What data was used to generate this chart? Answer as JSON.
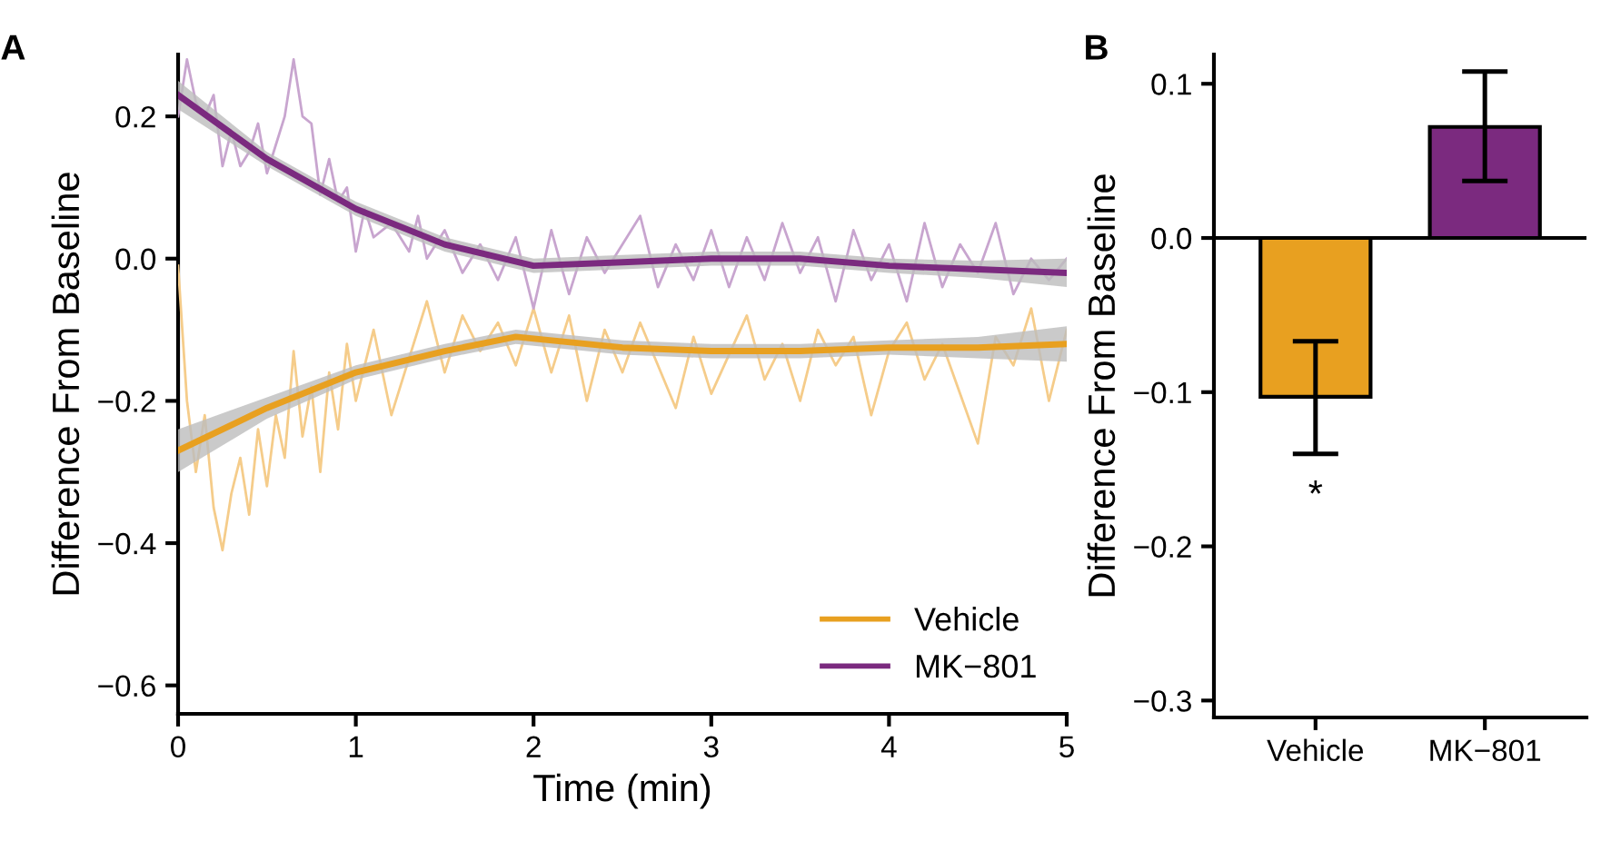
{
  "chart_data": [
    {
      "type": "line",
      "title": "A",
      "xlabel": "Time (min)",
      "ylabel": "Difference From Baseline",
      "xlim": [
        0,
        5
      ],
      "ylim": [
        -0.64,
        0.287
      ],
      "xticks": [
        0,
        1,
        2,
        3,
        4,
        5
      ],
      "yticks": [
        0.2,
        {
          "value": 0,
          "label": "0.0"
        },
        -0.2,
        -0.4,
        -0.6
      ],
      "grid": false,
      "legend": "bottom right",
      "line_style": "solid",
      "marker": "none",
      "series": [
        {
          "color": "#f5cc8a",
          "x": [
            0,
            0.05,
            0.1,
            0.15,
            0.2,
            0.25,
            0.3,
            0.35,
            0.4,
            0.45,
            0.5,
            0.55,
            0.6,
            0.65,
            0.7,
            0.75,
            0.8,
            0.85,
            0.9,
            0.95,
            1.0,
            1.1,
            1.2,
            1.3,
            1.4,
            1.5,
            1.6,
            1.7,
            1.8,
            1.9,
            2.0,
            2.1,
            2.2,
            2.3,
            2.4,
            2.5,
            2.6,
            2.8,
            2.9,
            3.0,
            3.2,
            3.3,
            3.4,
            3.5,
            3.6,
            3.7,
            3.8,
            3.9,
            4.0,
            4.1,
            4.2,
            4.3,
            4.4,
            4.5,
            4.6,
            4.7,
            4.8,
            4.9,
            5.0
          ],
          "values": [
            -0.01,
            -0.2,
            -0.3,
            -0.22,
            -0.35,
            -0.41,
            -0.33,
            -0.28,
            -0.36,
            -0.24,
            -0.32,
            -0.22,
            -0.28,
            -0.13,
            -0.25,
            -0.18,
            -0.3,
            -0.16,
            -0.24,
            -0.12,
            -0.2,
            -0.1,
            -0.22,
            -0.14,
            -0.06,
            -0.16,
            -0.08,
            -0.13,
            -0.09,
            -0.15,
            -0.07,
            -0.16,
            -0.08,
            -0.2,
            -0.1,
            -0.16,
            -0.09,
            -0.21,
            -0.11,
            -0.19,
            -0.08,
            -0.17,
            -0.12,
            -0.2,
            -0.1,
            -0.15,
            -0.11,
            -0.22,
            -0.13,
            -0.09,
            -0.17,
            -0.12,
            -0.19,
            -0.26,
            -0.11,
            -0.15,
            -0.07,
            -0.2,
            -0.1
          ]
        },
        {
          "color": "#c8a5cf",
          "x": [
            0,
            0.05,
            0.1,
            0.15,
            0.2,
            0.25,
            0.3,
            0.35,
            0.4,
            0.45,
            0.5,
            0.55,
            0.6,
            0.65,
            0.7,
            0.75,
            0.8,
            0.85,
            0.9,
            0.95,
            1.0,
            1.05,
            1.1,
            1.2,
            1.3,
            1.35,
            1.4,
            1.5,
            1.6,
            1.7,
            1.8,
            1.9,
            2.0,
            2.1,
            2.2,
            2.3,
            2.4,
            2.6,
            2.7,
            2.8,
            2.9,
            3.0,
            3.1,
            3.2,
            3.3,
            3.4,
            3.5,
            3.6,
            3.7,
            3.8,
            3.9,
            4.0,
            4.1,
            4.2,
            4.3,
            4.4,
            4.5,
            4.6,
            4.7,
            4.8,
            4.9,
            5.0
          ],
          "values": [
            0.2,
            0.28,
            0.22,
            0.2,
            0.23,
            0.13,
            0.18,
            0.13,
            0.15,
            0.19,
            0.12,
            0.16,
            0.2,
            0.28,
            0.2,
            0.19,
            0.09,
            0.14,
            0.08,
            0.1,
            0.01,
            0.07,
            0.03,
            0.05,
            0.01,
            0.06,
            0.0,
            0.04,
            -0.02,
            0.02,
            -0.03,
            0.03,
            -0.07,
            0.04,
            -0.05,
            0.03,
            -0.02,
            0.06,
            -0.04,
            0.02,
            -0.03,
            0.04,
            -0.04,
            0.03,
            -0.03,
            0.05,
            -0.02,
            0.03,
            -0.06,
            0.04,
            -0.03,
            0.02,
            -0.06,
            0.05,
            -0.04,
            0.02,
            -0.02,
            0.05,
            -0.05,
            0.0,
            -0.03,
            0.0
          ]
        },
        {
          "name": "Vehicle",
          "color": "#e8a020",
          "x": [
            0,
            0.5,
            1,
            1.5,
            1.9,
            2.5,
            3,
            3.5,
            4,
            4.5,
            5
          ],
          "values": [
            -0.27,
            -0.21,
            -0.16,
            -0.13,
            -0.11,
            -0.125,
            -0.13,
            -0.13,
            -0.125,
            -0.125,
            -0.12
          ],
          "lower": [
            -0.3,
            -0.225,
            -0.17,
            -0.14,
            -0.12,
            -0.135,
            -0.14,
            -0.14,
            -0.135,
            -0.14,
            -0.145
          ],
          "upper": [
            -0.24,
            -0.195,
            -0.15,
            -0.12,
            -0.1,
            -0.115,
            -0.12,
            -0.12,
            -0.115,
            -0.11,
            -0.095
          ]
        },
        {
          "name": "MK−801",
          "color": "#7b2a7f",
          "x": [
            0,
            0.5,
            1,
            1.5,
            2,
            2.5,
            3,
            3.5,
            4,
            4.5,
            5
          ],
          "values": [
            0.23,
            0.14,
            0.07,
            0.02,
            -0.01,
            -0.005,
            0.0,
            0.0,
            -0.01,
            -0.015,
            -0.02
          ],
          "lower": [
            0.21,
            0.13,
            0.06,
            0.01,
            -0.02,
            -0.015,
            -0.01,
            -0.01,
            -0.02,
            -0.027,
            -0.04
          ],
          "upper": [
            0.25,
            0.15,
            0.08,
            0.03,
            0.0,
            0.005,
            0.01,
            0.01,
            0.0,
            -0.003,
            0.0
          ]
        }
      ]
    },
    {
      "type": "bar",
      "title": "B",
      "ylabel": "Difference From Baseline",
      "categories": [
        "Vehicle",
        "MK−801"
      ],
      "values": [
        -0.103,
        0.072
      ],
      "colors": [
        "#e8a020",
        "#7b2a7f"
      ],
      "errors": [
        [
          -0.14,
          -0.067
        ],
        [
          0.037,
          0.108
        ]
      ],
      "ylim": [
        -0.311,
        0.119
      ],
      "yticks": [
        0.1,
        {
          "value": 0,
          "label": "0.0"
        },
        -0.1,
        -0.2,
        -0.3
      ],
      "grid": false,
      "ref_lines": [
        {
          "axis": "y",
          "value": 0,
          "color": "#000000"
        }
      ],
      "annotations": [
        "*"
      ]
    }
  ]
}
